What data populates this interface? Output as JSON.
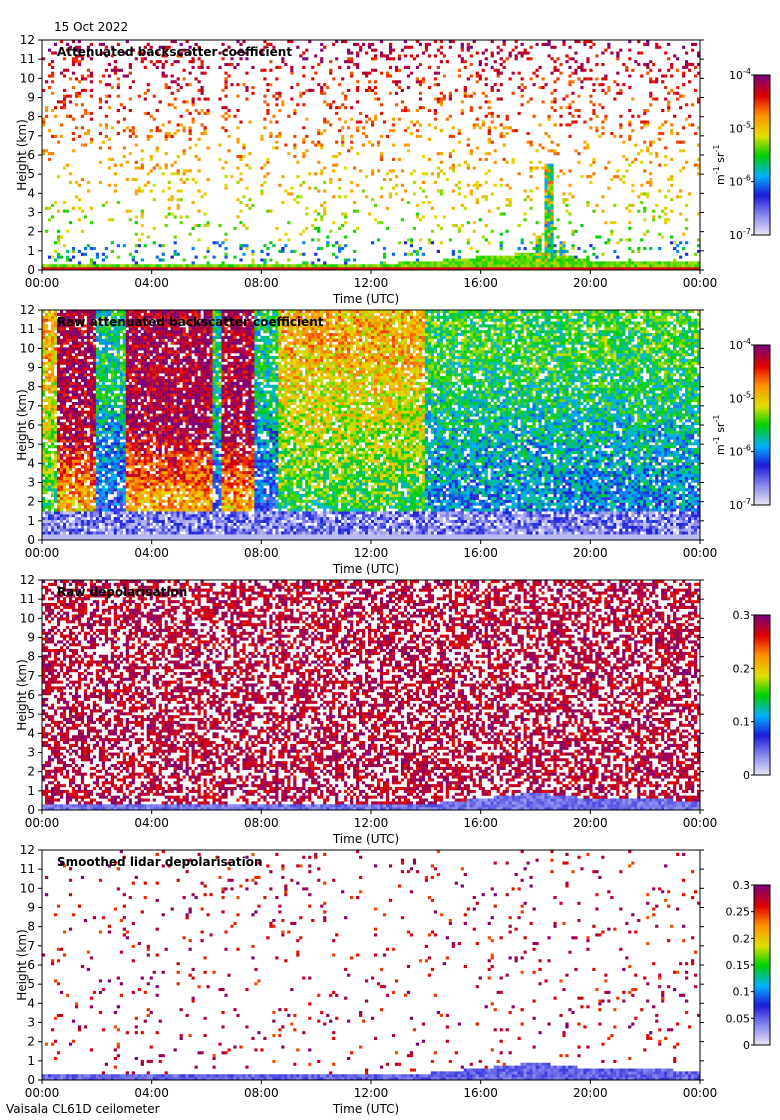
{
  "header": {
    "date": "15 Oct 2022"
  },
  "footer": {
    "instrument": "Vaisala CL61D ceilometer"
  },
  "chart_data": [
    {
      "type": "heatmap",
      "title": "Attenuated backscatter coefficient",
      "xlabel": "Time (UTC)",
      "ylabel": "Height (km)",
      "x_ticks": [
        "00:00",
        "04:00",
        "08:00",
        "12:00",
        "16:00",
        "20:00",
        "00:00"
      ],
      "xlim_hours": [
        0,
        24
      ],
      "y_ticks": [
        0,
        1,
        2,
        3,
        4,
        5,
        6,
        7,
        8,
        9,
        10,
        11,
        12
      ],
      "ylim_km": [
        0,
        12
      ],
      "colorbar": {
        "scale": "log",
        "ticks": [
          {
            "value": 1e-07,
            "base": "10",
            "exp": "-7"
          },
          {
            "value": 1e-06,
            "base": "10",
            "exp": "-6"
          },
          {
            "value": 1e-05,
            "base": "10",
            "exp": "-5"
          },
          {
            "value": 0.0001,
            "base": "10",
            "exp": "-4"
          }
        ],
        "unit_parts": [
          "m",
          "-1",
          " sr",
          "-1"
        ],
        "range": [
          1e-07,
          0.0001
        ]
      },
      "features": {
        "pattern": "sparse",
        "density": 0.13,
        "boundary_layer_top_km": [
          [
            0,
            0.25
          ],
          [
            8,
            0.3
          ],
          [
            12,
            0.3
          ],
          [
            14,
            0.45
          ],
          [
            16,
            0.7
          ],
          [
            18,
            0.9
          ],
          [
            19,
            0.8
          ],
          [
            20,
            0.5
          ],
          [
            24,
            0.4
          ]
        ],
        "cloud_columns": [
          {
            "time_h": 18.1,
            "base_km": 0.5,
            "top_km": 1.8
          },
          {
            "time_h": 18.5,
            "base_km": 0.5,
            "top_km": 5.5
          },
          {
            "time_h": 19.0,
            "base_km": 0.5,
            "top_km": 1.5
          }
        ],
        "gaps_h": [
          [
            1.9,
            2.1
          ],
          [
            6.1,
            6.4
          ],
          [
            7.7,
            8.0
          ]
        ]
      }
    },
    {
      "type": "heatmap",
      "title": "Raw attenuated backscatter coefficient",
      "xlabel": "Time (UTC)",
      "ylabel": "Height (km)",
      "x_ticks": [
        "00:00",
        "04:00",
        "08:00",
        "12:00",
        "16:00",
        "20:00",
        "00:00"
      ],
      "xlim_hours": [
        0,
        24
      ],
      "y_ticks": [
        0,
        1,
        2,
        3,
        4,
        5,
        6,
        7,
        8,
        9,
        10,
        11,
        12
      ],
      "ylim_km": [
        0,
        12
      ],
      "colorbar": {
        "scale": "log",
        "ticks": [
          {
            "value": 1e-07,
            "base": "10",
            "exp": "-7"
          },
          {
            "value": 1e-06,
            "base": "10",
            "exp": "-6"
          },
          {
            "value": 1e-05,
            "base": "10",
            "exp": "-5"
          },
          {
            "value": 0.0001,
            "base": "10",
            "exp": "-4"
          }
        ],
        "unit_parts": [
          "m",
          "-1",
          " sr",
          "-1"
        ],
        "range": [
          1e-07,
          0.0001
        ]
      },
      "features": {
        "pattern": "raw",
        "density": 0.85,
        "bright_bands_h": [
          [
            0.6,
            2.0
          ],
          [
            3.1,
            6.2
          ],
          [
            6.6,
            7.8
          ]
        ],
        "dim_bands_h": [
          [
            2.0,
            3.1
          ],
          [
            6.2,
            6.6
          ],
          [
            7.8,
            8.6
          ]
        ]
      }
    },
    {
      "type": "heatmap",
      "title": "Raw depolarisation",
      "xlabel": "Time (UTC)",
      "ylabel": "Height (km)",
      "x_ticks": [
        "00:00",
        "04:00",
        "08:00",
        "12:00",
        "16:00",
        "20:00",
        "00:00"
      ],
      "xlim_hours": [
        0,
        24
      ],
      "y_ticks": [
        0,
        1,
        2,
        3,
        4,
        5,
        6,
        7,
        8,
        9,
        10,
        11,
        12
      ],
      "ylim_km": [
        0,
        12
      ],
      "colorbar": {
        "scale": "linear",
        "ticks": [
          {
            "value": 0,
            "label": "0"
          },
          {
            "value": 0.1,
            "label": "0.1"
          },
          {
            "value": 0.2,
            "label": "0.2"
          },
          {
            "value": 0.3,
            "label": "0.3"
          }
        ],
        "range": [
          0,
          0.3
        ]
      },
      "features": {
        "pattern": "noise",
        "density": 0.55,
        "boundary_layer_top_km": [
          [
            0,
            0.3
          ],
          [
            14,
            0.3
          ],
          [
            16,
            0.6
          ],
          [
            18,
            0.9
          ],
          [
            20,
            0.6
          ],
          [
            24,
            0.5
          ]
        ]
      }
    },
    {
      "type": "heatmap",
      "title": "Smoothed lidar depolarisation",
      "xlabel": "Time (UTC)",
      "ylabel": "Height (km)",
      "x_ticks": [
        "00:00",
        "04:00",
        "08:00",
        "12:00",
        "16:00",
        "20:00",
        "00:00"
      ],
      "xlim_hours": [
        0,
        24
      ],
      "y_ticks": [
        0,
        1,
        2,
        3,
        4,
        5,
        6,
        7,
        8,
        9,
        10,
        11,
        12
      ],
      "ylim_km": [
        0,
        12
      ],
      "colorbar": {
        "scale": "linear",
        "ticks": [
          {
            "value": 0,
            "label": "0"
          },
          {
            "value": 0.05,
            "label": "0.05"
          },
          {
            "value": 0.1,
            "label": "0.1"
          },
          {
            "value": 0.15,
            "label": "0.15"
          },
          {
            "value": 0.2,
            "label": "0.2"
          },
          {
            "value": 0.25,
            "label": "0.25"
          },
          {
            "value": 0.3,
            "label": "0.3"
          }
        ],
        "range": [
          0,
          0.3
        ]
      },
      "features": {
        "pattern": "sparse-depol",
        "density": 0.04,
        "boundary_layer_top_km": [
          [
            0,
            0.3
          ],
          [
            14,
            0.35
          ],
          [
            16,
            0.6
          ],
          [
            18,
            0.9
          ],
          [
            20,
            0.6
          ],
          [
            24,
            0.5
          ]
        ]
      }
    }
  ]
}
